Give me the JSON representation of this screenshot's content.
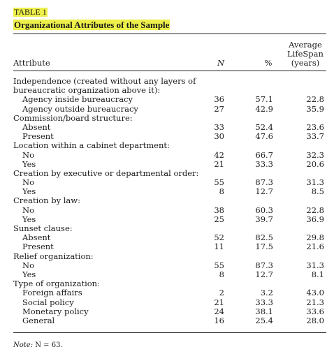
{
  "table": {
    "label": "TABLE 1",
    "title": "Organizational Attributes of the Sample",
    "columns": {
      "attribute": "Attribute",
      "n": "N",
      "pct": "%",
      "lifespan_line1": "Average",
      "lifespan_line2": "LifeSpan",
      "lifespan_line3": "(years)"
    },
    "rows": [
      {
        "label": "Independence (created without any layers of",
        "n": "",
        "pct": "",
        "life": "",
        "sub": false
      },
      {
        "label": "bureaucratic organization above it):",
        "n": "",
        "pct": "",
        "life": "",
        "sub": false
      },
      {
        "label": "Agency inside bureaucracy",
        "n": "36",
        "pct": "57.1",
        "life": "22.8",
        "sub": true
      },
      {
        "label": "Agency outside bureaucracy",
        "n": "27",
        "pct": "42.9",
        "life": "35.9",
        "sub": true
      },
      {
        "label": "Commission/board structure:",
        "n": "",
        "pct": "",
        "life": "",
        "sub": false
      },
      {
        "label": "Absent",
        "n": "33",
        "pct": "52.4",
        "life": "23.6",
        "sub": true
      },
      {
        "label": "Present",
        "n": "30",
        "pct": "47.6",
        "life": "33.7",
        "sub": true
      },
      {
        "label": "Location within a cabinet department:",
        "n": "",
        "pct": "",
        "life": "",
        "sub": false
      },
      {
        "label": "No",
        "n": "42",
        "pct": "66.7",
        "life": "32.3",
        "sub": true
      },
      {
        "label": "Yes",
        "n": "21",
        "pct": "33.3",
        "life": "20.6",
        "sub": true
      },
      {
        "label": "Creation by executive or departmental order:",
        "n": "",
        "pct": "",
        "life": "",
        "sub": false
      },
      {
        "label": "No",
        "n": "55",
        "pct": "87.3",
        "life": "31.3",
        "sub": true
      },
      {
        "label": "Yes",
        "n": "8",
        "pct": "12.7",
        "life": "8.5",
        "sub": true
      },
      {
        "label": "Creation by law:",
        "n": "",
        "pct": "",
        "life": "",
        "sub": false
      },
      {
        "label": "No",
        "n": "38",
        "pct": "60.3",
        "life": "22.8",
        "sub": true
      },
      {
        "label": "Yes",
        "n": "25",
        "pct": "39.7",
        "life": "36.9",
        "sub": true
      },
      {
        "label": "Sunset clause:",
        "n": "",
        "pct": "",
        "life": "",
        "sub": false
      },
      {
        "label": "Absent",
        "n": "52",
        "pct": "82.5",
        "life": "29.8",
        "sub": true
      },
      {
        "label": "Present",
        "n": "11",
        "pct": "17.5",
        "life": "21.6",
        "sub": true
      },
      {
        "label": "Relief organization:",
        "n": "",
        "pct": "",
        "life": "",
        "sub": false
      },
      {
        "label": "No",
        "n": "55",
        "pct": "87.3",
        "life": "31.3",
        "sub": true
      },
      {
        "label": "Yes",
        "n": "8",
        "pct": "12.7",
        "life": "8.1",
        "sub": true
      },
      {
        "label": "Type of organization:",
        "n": "",
        "pct": "",
        "life": "",
        "sub": false
      },
      {
        "label": "Foreign affairs",
        "n": "2",
        "pct": "3.2",
        "life": "43.0",
        "sub": true
      },
      {
        "label": "Social policy",
        "n": "21",
        "pct": "33.3",
        "life": "21.3",
        "sub": true
      },
      {
        "label": "Monetary policy",
        "n": "24",
        "pct": "38.1",
        "life": "33.6",
        "sub": true
      },
      {
        "label": "General",
        "n": "16",
        "pct": "25.4",
        "life": "28.0",
        "sub": true
      }
    ],
    "note_label": "Note:",
    "note_text": " N = 63."
  },
  "highlight_color": "#eef04a"
}
